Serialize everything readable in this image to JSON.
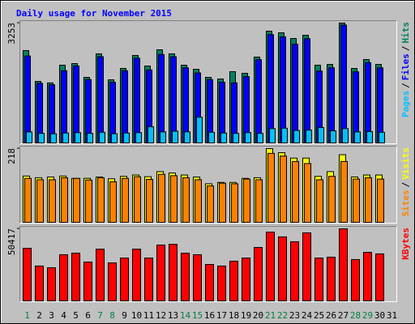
{
  "chart_data": {
    "type": "bar",
    "title": "Daily usage for November 2015",
    "categories": [
      "1",
      "2",
      "3",
      "4",
      "5",
      "6",
      "7",
      "8",
      "9",
      "10",
      "11",
      "12",
      "13",
      "14",
      "15",
      "16",
      "17",
      "18",
      "19",
      "20",
      "21",
      "22",
      "23",
      "24",
      "25",
      "26",
      "27",
      "28",
      "29",
      "30",
      "31"
    ],
    "highlight_categories": [
      0,
      6,
      7,
      13,
      14,
      20,
      21,
      27,
      28
    ],
    "highlight_color": "#008040",
    "legend_separator": "/",
    "panels": [
      {
        "ylim": [
          0,
          3253
        ],
        "yticks": [
          3253
        ],
        "series": [
          {
            "name": "Pages",
            "color": "#00c0ff",
            "values": [
              300,
              260,
              250,
              270,
              280,
              260,
              290,
              250,
              270,
              280,
              440,
              300,
              320,
              300,
              700,
              290,
              270,
              260,
              280,
              260,
              390,
              400,
              340,
              350,
              420,
              330,
              390,
              300,
              310,
              290,
              null
            ]
          },
          {
            "name": "Files",
            "color": "#0000ff",
            "values": [
              2360,
              1620,
              1580,
              1960,
              2090,
              1720,
              2340,
              1650,
              1960,
              2300,
              1980,
              2400,
              2340,
              2040,
              1900,
              1720,
              1650,
              1630,
              1800,
              2260,
              2940,
              2880,
              2680,
              2830,
              1950,
              2040,
              3200,
              1930,
              2180,
              2040,
              null
            ]
          },
          {
            "name": "Hits",
            "color": "#008060",
            "values": [
              2506,
              1670,
              1630,
              2110,
              2154,
              1780,
              2418,
              1714,
              2022,
              2374,
              2088,
              2528,
              2418,
              2110,
              2000,
              1780,
              1736,
              1934,
              1890,
              2330,
              3033,
              2989,
              2835,
              2923,
              2110,
              2132,
              3253,
              2022,
              2264,
              2132,
              null
            ]
          }
        ]
      },
      {
        "ylim": [
          0,
          218
        ],
        "yticks": [
          218
        ],
        "series": [
          {
            "name": "Sites",
            "color": "#ff8000",
            "values": [
              130,
              126,
              126,
              132,
              130,
              125,
              132,
              120,
              130,
              135,
              127,
              142,
              138,
              132,
              126,
              108,
              116,
              114,
              128,
              126,
              204,
              196,
              180,
              174,
              126,
              136,
              180,
              128,
              132,
              128,
              null
            ]
          },
          {
            "name": "Visits",
            "color": "#ffff00",
            "values": [
              137,
              132,
              134,
              137,
              130,
              130,
              134,
              129,
              136,
              140,
              135,
              150,
              146,
              140,
              134,
              114,
              118,
              118,
              130,
              132,
              218,
              206,
              190,
              190,
              136,
              150,
              200,
              134,
              140,
              140,
              null
            ]
          }
        ]
      },
      {
        "ylim": [
          0,
          50417
        ],
        "yticks": [
          50417
        ],
        "series": [
          {
            "name": "KBytes",
            "color": "#ff0000",
            "values": [
              36800,
              24400,
              23200,
              32300,
              33400,
              27200,
              36200,
              26600,
              30000,
              36200,
              30000,
              39100,
              39600,
              33400,
              32300,
              25500,
              24400,
              27800,
              30000,
              37400,
              48100,
              44800,
              41400,
              47600,
              30000,
              30600,
              50417,
              28900,
              34000,
              32900,
              null
            ]
          }
        ]
      }
    ]
  }
}
